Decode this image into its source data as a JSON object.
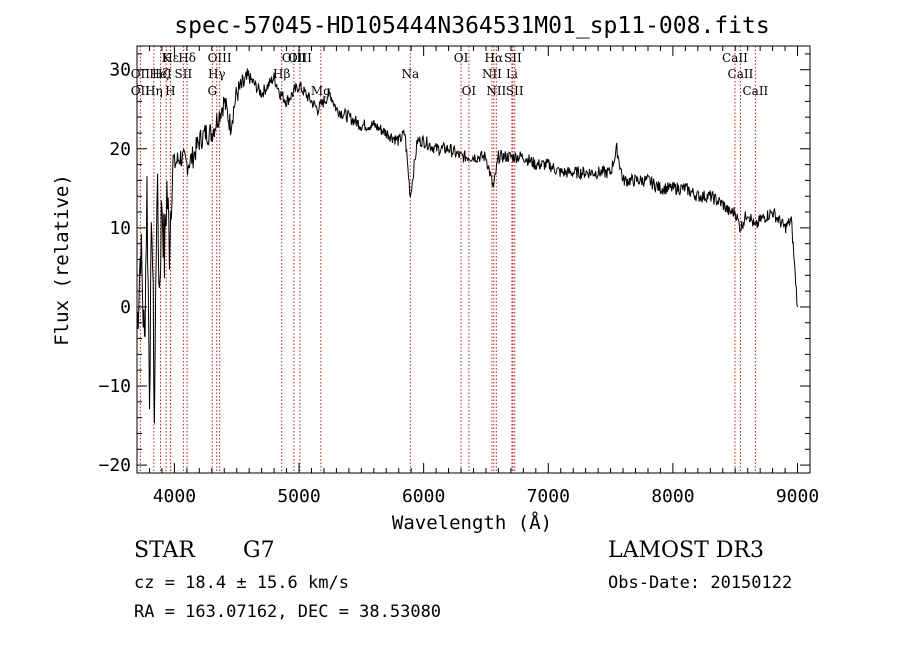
{
  "chart_data": {
    "type": "line",
    "title": "spec-57045-HD105444N364531M01_sp11-008.fits",
    "xlabel": "Wavelength (Å)",
    "ylabel": "Flux (relative)",
    "xlim": [
      3700,
      9100
    ],
    "ylim": [
      -21,
      33
    ],
    "xticks": [
      4000,
      5000,
      6000,
      7000,
      8000,
      9000
    ],
    "yticks": [
      -20,
      -10,
      0,
      10,
      20,
      30
    ],
    "grid": false,
    "series": [
      {
        "name": "flux",
        "color": "#000000",
        "x": [
          3700,
          3730,
          3760,
          3780,
          3800,
          3820,
          3840,
          3860,
          3880,
          3900,
          3920,
          3940,
          3960,
          3980,
          4000,
          4050,
          4100,
          4150,
          4200,
          4250,
          4300,
          4350,
          4400,
          4450,
          4500,
          4550,
          4600,
          4650,
          4700,
          4750,
          4800,
          4850,
          4900,
          4950,
          5000,
          5050,
          5100,
          5150,
          5200,
          5250,
          5300,
          5400,
          5500,
          5600,
          5700,
          5800,
          5850,
          5893,
          5950,
          6000,
          6100,
          6200,
          6300,
          6400,
          6500,
          6560,
          6600,
          6700,
          6800,
          6900,
          7000,
          7100,
          7200,
          7300,
          7400,
          7500,
          7550,
          7600,
          7700,
          7800,
          7900,
          8000,
          8100,
          8200,
          8300,
          8400,
          8450,
          8500,
          8542,
          8600,
          8662,
          8700,
          8800,
          8900,
          8950,
          9000
        ],
        "y": [
          -3,
          8,
          -5,
          15,
          -10,
          12,
          -14,
          16,
          2,
          14,
          6,
          15,
          8,
          17,
          18,
          19,
          18,
          19,
          21,
          22,
          22,
          24,
          26,
          23,
          27,
          28,
          29,
          28,
          27,
          28,
          29,
          27,
          26,
          27,
          28,
          27,
          26,
          25,
          26,
          27,
          25,
          24,
          23,
          23,
          22,
          21,
          22,
          14,
          21,
          21,
          20,
          20,
          19,
          19,
          19,
          15,
          19,
          19,
          19,
          18,
          18,
          17,
          17,
          17,
          17,
          17,
          20,
          16,
          16,
          16,
          15,
          15,
          15,
          14,
          14,
          13,
          12,
          12,
          10,
          12,
          10,
          11,
          12,
          10,
          11,
          0
        ]
      }
    ],
    "lines": [
      {
        "label": "Hε",
        "x": 3970,
        "row": 1
      },
      {
        "label": "OII",
        "x": 3727,
        "row": 2
      },
      {
        "label": "OII",
        "x": 3727,
        "row": 3
      },
      {
        "label": "Hη",
        "x": 3835,
        "row": 3
      },
      {
        "label": "Hζ",
        "x": 3889,
        "row": 2
      },
      {
        "label": "HeI",
        "x": 3889,
        "row": 2
      },
      {
        "label": "H",
        "x": 3968,
        "row": 3
      },
      {
        "label": "K",
        "x": 3934,
        "row": 1
      },
      {
        "label": "Hδ",
        "x": 4102,
        "row": 1
      },
      {
        "label": "SII",
        "x": 4072,
        "row": 2
      },
      {
        "label": "OIII",
        "x": 4363,
        "row": 1
      },
      {
        "label": "Hγ",
        "x": 4340,
        "row": 2
      },
      {
        "label": "G",
        "x": 4304,
        "row": 3
      },
      {
        "label": "OIII",
        "x": 4959,
        "row": 1
      },
      {
        "label": "OIII",
        "x": 5007,
        "row": 1
      },
      {
        "label": "Hβ",
        "x": 4861,
        "row": 2
      },
      {
        "label": "Mg",
        "x": 5175,
        "row": 3
      },
      {
        "label": "Na",
        "x": 5893,
        "row": 2
      },
      {
        "label": "OI",
        "x": 6300,
        "row": 1
      },
      {
        "label": "OI",
        "x": 6363,
        "row": 3
      },
      {
        "label": "Hα",
        "x": 6563,
        "row": 1
      },
      {
        "label": "NII",
        "x": 6548,
        "row": 2
      },
      {
        "label": "NII",
        "x": 6583,
        "row": 3
      },
      {
        "label": "SII",
        "x": 6716,
        "row": 1
      },
      {
        "label": "SII",
        "x": 6731,
        "row": 3
      },
      {
        "label": "Li",
        "x": 6708,
        "row": 2
      },
      {
        "label": "CaII",
        "x": 8498,
        "row": 1
      },
      {
        "label": "CaII",
        "x": 8542,
        "row": 2
      },
      {
        "label": "CaII",
        "x": 8662,
        "row": 3
      }
    ]
  },
  "info": {
    "object_type": "STAR",
    "subclass": "G7",
    "survey": "LAMOST DR3",
    "cz": "cz = 18.4 ± 15.6 km/s",
    "obs_date": "Obs-Date: 20150122",
    "coords": "RA = 163.07162, DEC =  38.53080"
  }
}
